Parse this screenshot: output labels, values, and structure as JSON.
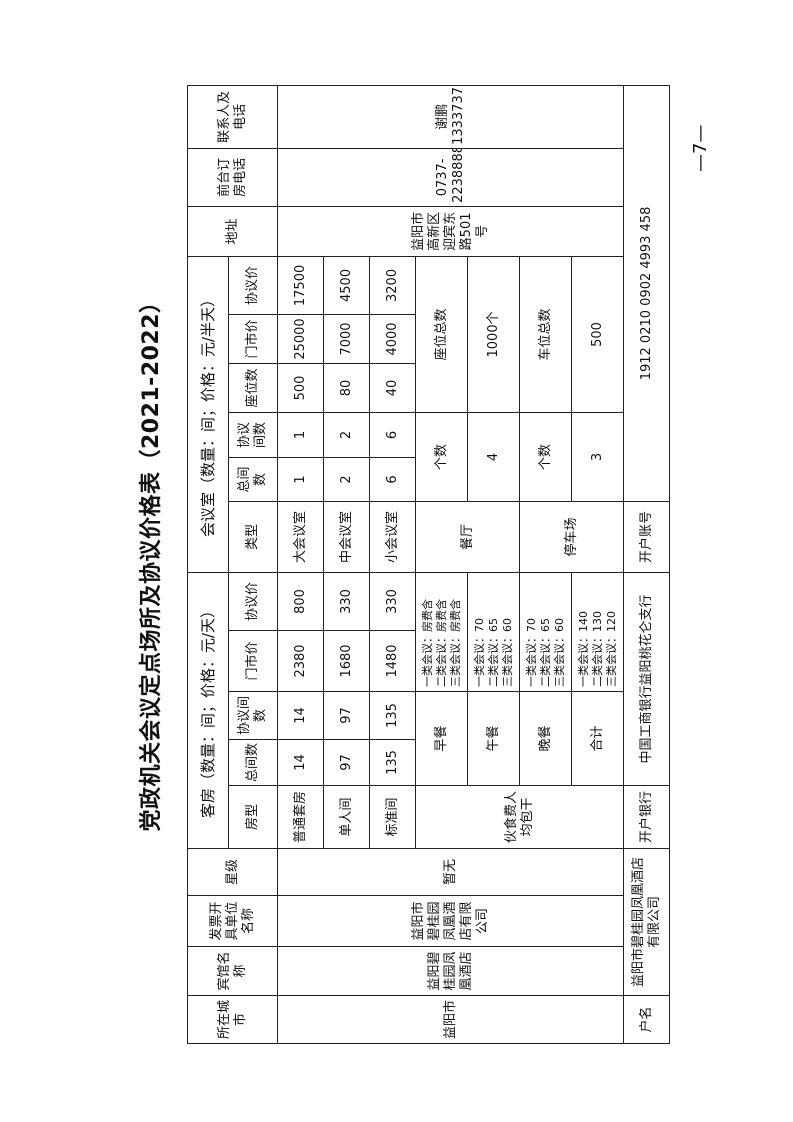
{
  "title": "党政机关会议定点场所及协议价格表（2021-2022）",
  "page_number": "—7—",
  "headers": {
    "city": "所在城市",
    "hotel": "宾馆名称",
    "invoice": "发票开具单位名称",
    "star": "星级",
    "rooms_group": "客房（数量：间；价格：元/天）",
    "meeting_group": "会议室（数量：间；价格：元/半天）",
    "address": "地址",
    "front_desk": "前台订房电话",
    "contact": "联系人及电话",
    "room_cols": [
      "房型",
      "总间数",
      "协议间数",
      "门市价",
      "协议价"
    ],
    "meeting_cols": [
      "类型",
      "总间数",
      "协议间数",
      "座位数",
      "门市价",
      "协议价"
    ]
  },
  "hotel": {
    "city": "益阳市",
    "name": "益阳碧桂园凤凰酒店",
    "invoice": "益阳市碧桂园凤凰酒店有限公司",
    "star": "暂无",
    "address": "益阳市高新区迎宾东路501号",
    "front_desk": "0737-2238888",
    "contact": "谢鹏13337371155"
  },
  "rooms": [
    {
      "type": "普通套房",
      "total": "14",
      "agreed": "14",
      "market": "2380",
      "price": "800"
    },
    {
      "type": "单人间",
      "total": "97",
      "agreed": "97",
      "market": "1680",
      "price": "330"
    },
    {
      "type": "标准间",
      "total": "135",
      "agreed": "135",
      "market": "1480",
      "price": "330"
    }
  ],
  "meetings": [
    {
      "type": "大会议室",
      "total": "1",
      "agreed": "1",
      "seats": "500",
      "market": "25000",
      "price": "17500"
    },
    {
      "type": "中会议室",
      "total": "2",
      "agreed": "2",
      "seats": "80",
      "market": "7000",
      "price": "4500"
    },
    {
      "type": "小会议室",
      "total": "6",
      "agreed": "6",
      "seats": "40",
      "market": "4000",
      "price": "3200"
    }
  ],
  "meals": {
    "label": "伙食费人均包干",
    "rows": [
      {
        "name": "早餐",
        "lines": [
          "一类会议：房费含",
          "二类会议：房费含",
          "三类会议：房费含"
        ]
      },
      {
        "name": "午餐",
        "lines": [
          "一类会议：70",
          "二类会议：65",
          "三类会议：60"
        ]
      },
      {
        "name": "晚餐",
        "lines": [
          "一类会议：70",
          "二类会议：65",
          "三类会议：60"
        ]
      },
      {
        "name": "合计",
        "lines": [
          "一类会议：140",
          "二类会议：130",
          "三类会议：120"
        ]
      }
    ]
  },
  "restaurant": {
    "label": "餐厅",
    "count_label": "个数",
    "count": "4",
    "seats_label": "座位总数",
    "seats": "1000个"
  },
  "parking": {
    "label": "停车场",
    "count_label": "个数",
    "count": "3",
    "spaces_label": "车位总数",
    "spaces": "500"
  },
  "bank": {
    "account_name_label": "户名",
    "account_name": "益阳市碧桂园凤凰酒店有限公司",
    "bank_label": "开户银行",
    "bank": "中国工商银行益阳桃花仑支行",
    "account_no_label": "开户账号",
    "account_no": "1912 0210 0902 4993 458"
  }
}
